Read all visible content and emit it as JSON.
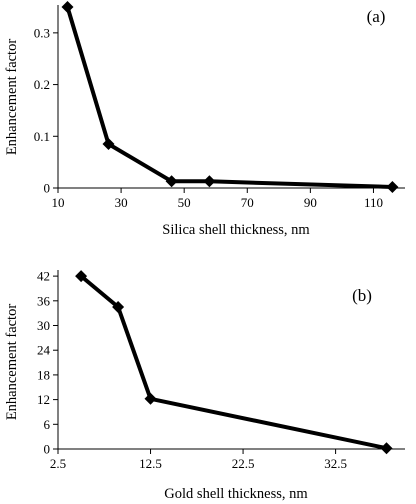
{
  "colors": {
    "line": "#000000",
    "marker": "#000000",
    "axis": "#000000",
    "background": "#ffffff"
  },
  "chart_data": [
    {
      "type": "line",
      "panel_label": "(a)",
      "xlabel": "Silica shell thickness, nm",
      "ylabel": "Enhancement factor",
      "xlim": [
        10,
        120
      ],
      "ylim": [
        0,
        0.35
      ],
      "xticks": [
        10,
        30,
        50,
        70,
        90,
        110
      ],
      "xtick_labels": [
        "10",
        "30",
        "50",
        "70",
        "90",
        "110"
      ],
      "yticks": [
        0,
        0.1,
        0.2,
        0.3
      ],
      "ytick_labels": [
        "0",
        "0.1",
        "0.2",
        "0.3"
      ],
      "grid": false,
      "marker": "diamond",
      "series": [
        {
          "x": [
            13,
            26,
            46,
            58,
            116
          ],
          "y": [
            0.35,
            0.085,
            0.013,
            0.013,
            0.002
          ]
        }
      ]
    },
    {
      "type": "line",
      "panel_label": "(b)",
      "xlabel": "Gold shell thickness, nm",
      "ylabel": "Enhancement factor",
      "xlim": [
        2.5,
        40
      ],
      "ylim": [
        0,
        43
      ],
      "xticks": [
        2.5,
        12.5,
        22.5,
        32.5
      ],
      "xtick_labels": [
        "2.5",
        "12.5",
        "22.5",
        "32.5"
      ],
      "yticks": [
        0,
        6,
        12,
        18,
        24,
        30,
        36,
        42
      ],
      "ytick_labels": [
        "0",
        "6",
        "12",
        "18",
        "24",
        "30",
        "36",
        "42"
      ],
      "grid": false,
      "marker": "diamond",
      "series": [
        {
          "x": [
            5,
            9,
            12.5,
            38
          ],
          "y": [
            42,
            34.5,
            12.2,
            0.2
          ]
        }
      ]
    }
  ]
}
